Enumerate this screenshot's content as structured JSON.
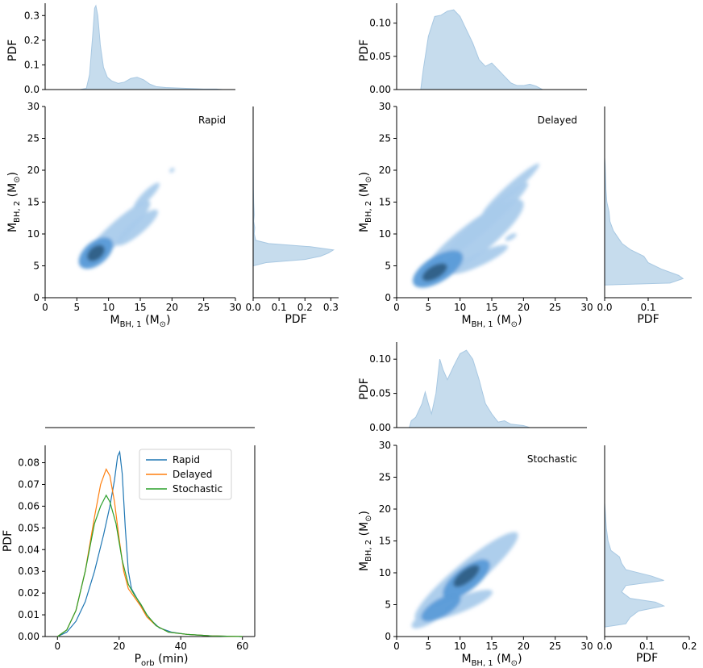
{
  "chart_data": [
    {
      "name": "rapid",
      "type": "kde-joint",
      "annotation": "Rapid",
      "xlim": [
        0,
        30
      ],
      "ylim": [
        0,
        30
      ],
      "xticks": [
        0,
        5,
        10,
        15,
        20,
        25,
        30
      ],
      "yticks": [
        0,
        5,
        10,
        15,
        20,
        25,
        30
      ],
      "xlabel": "M_BH,1 (M_⊙)",
      "ylabel": "M_BH,2 (M_⊙)",
      "marg_x_ylabel": "PDF",
      "marg_y_xlabel": "PDF",
      "marg_x_ylim": [
        0,
        0.35
      ],
      "marg_x_ticks": [
        "0.0",
        "0.1",
        "0.2",
        "0.3"
      ],
      "marg_y_xlim": [
        0,
        0.33
      ],
      "marg_y_ticks": [
        "0.0",
        "0.1",
        "0.2",
        "0.3"
      ],
      "marg_x_curve": [
        [
          5.5,
          0
        ],
        [
          6.5,
          0.005
        ],
        [
          7,
          0.06
        ],
        [
          7.5,
          0.22
        ],
        [
          7.8,
          0.33
        ],
        [
          8,
          0.34
        ],
        [
          8.3,
          0.3
        ],
        [
          8.7,
          0.18
        ],
        [
          9.2,
          0.09
        ],
        [
          9.8,
          0.05
        ],
        [
          10.5,
          0.035
        ],
        [
          11.5,
          0.025
        ],
        [
          12.5,
          0.03
        ],
        [
          13.5,
          0.045
        ],
        [
          14.5,
          0.05
        ],
        [
          15.5,
          0.04
        ],
        [
          16.5,
          0.022
        ],
        [
          17.5,
          0.012
        ],
        [
          19,
          0.008
        ],
        [
          21,
          0.006
        ],
        [
          23,
          0.004
        ],
        [
          25,
          0.002
        ],
        [
          27,
          0.002
        ],
        [
          28,
          0
        ]
      ],
      "marg_y_curve": [
        [
          5,
          0
        ],
        [
          5.5,
          0.05
        ],
        [
          6,
          0.2
        ],
        [
          6.5,
          0.26
        ],
        [
          7,
          0.29
        ],
        [
          7.5,
          0.31
        ],
        [
          8,
          0.22
        ],
        [
          8.5,
          0.06
        ],
        [
          9,
          0.01
        ],
        [
          10,
          0.004
        ],
        [
          11,
          0.006
        ],
        [
          12,
          0.002
        ],
        [
          13,
          0.004
        ],
        [
          14,
          0.003
        ],
        [
          15,
          0.002
        ],
        [
          17,
          0.001
        ],
        [
          20,
          0.0005
        ],
        [
          23,
          0
        ]
      ],
      "blobs": [
        {
          "x": 8,
          "y": 7,
          "rx": 1.6,
          "ry": 1.0,
          "angle": 40,
          "level": 4
        },
        {
          "x": 8,
          "y": 7,
          "rx": 3.2,
          "ry": 1.8,
          "angle": 40,
          "level": 2
        },
        {
          "x": 11,
          "y": 10,
          "rx": 7.5,
          "ry": 1.5,
          "angle": 43,
          "level": 1
        },
        {
          "x": 14.5,
          "y": 11,
          "rx": 4.2,
          "ry": 1.1,
          "angle": 40,
          "level": 1
        },
        {
          "x": 16,
          "y": 16,
          "rx": 2.8,
          "ry": 0.7,
          "angle": 45,
          "level": 1
        },
        {
          "x": 20,
          "y": 20,
          "rx": 0.45,
          "ry": 0.3,
          "angle": 45,
          "level": 1
        }
      ]
    },
    {
      "name": "delayed",
      "type": "kde-joint",
      "annotation": "Delayed",
      "xlim": [
        0,
        30
      ],
      "ylim": [
        0,
        30
      ],
      "xticks": [
        0,
        5,
        10,
        15,
        20,
        25,
        30
      ],
      "yticks": [
        0,
        5,
        10,
        15,
        20,
        25,
        30
      ],
      "xlabel": "M_BH,1 (M_⊙)",
      "ylabel": "M_BH,2 (M_⊙)",
      "marg_x_ylabel": "PDF",
      "marg_y_xlabel": "PDF",
      "marg_x_ylim": [
        0,
        0.13
      ],
      "marg_x_ticks": [
        "0.00",
        "0.05",
        "0.10"
      ],
      "marg_y_xlim": [
        0,
        0.2
      ],
      "marg_y_ticks": [
        "0.0",
        "0.1"
      ],
      "marg_x_curve": [
        [
          3.8,
          0
        ],
        [
          4.2,
          0.03
        ],
        [
          5,
          0.08
        ],
        [
          6,
          0.11
        ],
        [
          7,
          0.112
        ],
        [
          8,
          0.118
        ],
        [
          9,
          0.12
        ],
        [
          10,
          0.11
        ],
        [
          11,
          0.09
        ],
        [
          12,
          0.07
        ],
        [
          13,
          0.045
        ],
        [
          14,
          0.035
        ],
        [
          15,
          0.04
        ],
        [
          16,
          0.03
        ],
        [
          17,
          0.02
        ],
        [
          18,
          0.01
        ],
        [
          19,
          0.006
        ],
        [
          20,
          0.006
        ],
        [
          21,
          0.008
        ],
        [
          22,
          0.005
        ],
        [
          23,
          0
        ]
      ],
      "marg_y_curve": [
        [
          2,
          0
        ],
        [
          2.3,
          0.15
        ],
        [
          3,
          0.18
        ],
        [
          3.5,
          0.17
        ],
        [
          4.5,
          0.13
        ],
        [
          5.5,
          0.1
        ],
        [
          6.5,
          0.09
        ],
        [
          7.5,
          0.06
        ],
        [
          8.5,
          0.04
        ],
        [
          9.5,
          0.03
        ],
        [
          10.5,
          0.02
        ],
        [
          12,
          0.012
        ],
        [
          13.5,
          0.01
        ],
        [
          15,
          0.005
        ],
        [
          17,
          0.003
        ],
        [
          19,
          0.002
        ],
        [
          21,
          0.001
        ],
        [
          22,
          0
        ]
      ],
      "blobs": [
        {
          "x": 6,
          "y": 4,
          "rx": 2.2,
          "ry": 1.0,
          "angle": 30,
          "level": 4
        },
        {
          "x": 6.5,
          "y": 4.5,
          "rx": 4.5,
          "ry": 2.0,
          "angle": 32,
          "level": 2
        },
        {
          "x": 12,
          "y": 9,
          "rx": 10,
          "ry": 2.5,
          "angle": 38,
          "level": 1
        },
        {
          "x": 14,
          "y": 12,
          "rx": 9,
          "ry": 1.2,
          "angle": 42,
          "level": 1
        },
        {
          "x": 18,
          "y": 17,
          "rx": 6,
          "ry": 0.8,
          "angle": 42,
          "level": 1
        },
        {
          "x": 13,
          "y": 6,
          "rx": 5,
          "ry": 1.0,
          "angle": 25,
          "level": 1
        },
        {
          "x": 18,
          "y": 9.5,
          "rx": 1.0,
          "ry": 0.4,
          "angle": 30,
          "level": 1
        }
      ]
    },
    {
      "name": "stochastic",
      "type": "kde-joint",
      "annotation": "Stochastic",
      "xlim": [
        0,
        30
      ],
      "ylim": [
        0,
        30
      ],
      "xticks": [
        0,
        5,
        10,
        15,
        20,
        25,
        30
      ],
      "yticks": [
        0,
        5,
        10,
        15,
        20,
        25,
        30
      ],
      "xlabel": "M_BH,1 (M_⊙)",
      "ylabel": "M_BH,2 (M_⊙)",
      "marg_x_ylabel": "PDF",
      "marg_y_xlabel": "PDF",
      "marg_x_ylim": [
        0,
        0.125
      ],
      "marg_x_ticks": [
        "0.00",
        "0.05",
        "0.10"
      ],
      "marg_y_xlim": [
        0,
        0.2
      ],
      "marg_y_ticks": [
        "0.0",
        "0.1",
        "0.2"
      ],
      "marg_x_curve": [
        [
          2,
          0
        ],
        [
          2.3,
          0.01
        ],
        [
          3,
          0.015
        ],
        [
          4,
          0.035
        ],
        [
          4.5,
          0.052
        ],
        [
          5,
          0.035
        ],
        [
          5.5,
          0.02
        ],
        [
          6.2,
          0.05
        ],
        [
          6.8,
          0.1
        ],
        [
          7.3,
          0.085
        ],
        [
          8,
          0.07
        ],
        [
          9,
          0.09
        ],
        [
          10,
          0.108
        ],
        [
          11,
          0.113
        ],
        [
          12,
          0.1
        ],
        [
          13,
          0.07
        ],
        [
          14,
          0.035
        ],
        [
          15,
          0.02
        ],
        [
          16,
          0.008
        ],
        [
          17,
          0.01
        ],
        [
          18,
          0.005
        ],
        [
          19,
          0.004
        ],
        [
          20,
          0.003
        ],
        [
          21,
          0
        ]
      ],
      "marg_y_curve": [
        [
          1.5,
          0
        ],
        [
          2,
          0.05
        ],
        [
          3,
          0.06
        ],
        [
          4,
          0.08
        ],
        [
          4.8,
          0.14
        ],
        [
          5.4,
          0.12
        ],
        [
          6,
          0.06
        ],
        [
          7,
          0.04
        ],
        [
          8,
          0.05
        ],
        [
          8.8,
          0.14
        ],
        [
          9.5,
          0.11
        ],
        [
          10.5,
          0.05
        ],
        [
          11.5,
          0.04
        ],
        [
          12.5,
          0.035
        ],
        [
          13.5,
          0.015
        ],
        [
          15,
          0.008
        ],
        [
          17,
          0.004
        ],
        [
          19,
          0.002
        ],
        [
          21,
          0
        ]
      ],
      "blobs": [
        {
          "x": 11,
          "y": 9.5,
          "rx": 2.5,
          "ry": 1.0,
          "angle": 38,
          "level": 4
        },
        {
          "x": 11,
          "y": 9,
          "rx": 4.5,
          "ry": 1.8,
          "angle": 38,
          "level": 2
        },
        {
          "x": 11,
          "y": 9.5,
          "rx": 10.5,
          "ry": 2.0,
          "angle": 40,
          "level": 1
        },
        {
          "x": 7,
          "y": 4.5,
          "rx": 3.5,
          "ry": 1.4,
          "angle": 30,
          "level": 2
        },
        {
          "x": 10,
          "y": 5,
          "rx": 5.5,
          "ry": 1.2,
          "angle": 22,
          "level": 1
        },
        {
          "x": 5,
          "y": 3,
          "rx": 3.0,
          "ry": 1.0,
          "angle": 30,
          "level": 1
        }
      ]
    },
    {
      "name": "porb",
      "type": "line",
      "xlabel": "P_orb (min)",
      "ylabel": "PDF",
      "xlim": [
        -4,
        64
      ],
      "ylim": [
        0,
        0.088
      ],
      "xticks": [
        0,
        20,
        40,
        60
      ],
      "yticks": [
        "0.00",
        "0.01",
        "0.02",
        "0.03",
        "0.04",
        "0.05",
        "0.06",
        "0.07",
        "0.08"
      ],
      "series": [
        {
          "name": "Rapid",
          "color": "#1f77b4",
          "points": [
            [
              0,
              0
            ],
            [
              3,
              0.002
            ],
            [
              6,
              0.007
            ],
            [
              9,
              0.016
            ],
            [
              12,
              0.03
            ],
            [
              15,
              0.047
            ],
            [
              17,
              0.06
            ],
            [
              18.5,
              0.072
            ],
            [
              19.5,
              0.083
            ],
            [
              20.2,
              0.085
            ],
            [
              21,
              0.075
            ],
            [
              22,
              0.05
            ],
            [
              23,
              0.03
            ],
            [
              24,
              0.022
            ],
            [
              26,
              0.017
            ],
            [
              28,
              0.012
            ],
            [
              30,
              0.008
            ],
            [
              33,
              0.004
            ],
            [
              37,
              0.002
            ],
            [
              42,
              0.001
            ],
            [
              50,
              0.0003
            ],
            [
              60,
              0
            ]
          ]
        },
        {
          "name": "Delayed",
          "color": "#ff7f0e",
          "points": [
            [
              0,
              0
            ],
            [
              3,
              0.003
            ],
            [
              6,
              0.012
            ],
            [
              9,
              0.03
            ],
            [
              12,
              0.055
            ],
            [
              14,
              0.07
            ],
            [
              15.8,
              0.077
            ],
            [
              17,
              0.074
            ],
            [
              18.5,
              0.062
            ],
            [
              20,
              0.045
            ],
            [
              21.5,
              0.03
            ],
            [
              23,
              0.022
            ],
            [
              25,
              0.018
            ],
            [
              27,
              0.014
            ],
            [
              29,
              0.009
            ],
            [
              32,
              0.005
            ],
            [
              36,
              0.002
            ],
            [
              42,
              0.001
            ],
            [
              50,
              0.0003
            ],
            [
              60,
              0
            ]
          ]
        },
        {
          "name": "Stochastic",
          "color": "#2ca02c",
          "points": [
            [
              0,
              0
            ],
            [
              3,
              0.003
            ],
            [
              6,
              0.012
            ],
            [
              9,
              0.03
            ],
            [
              12,
              0.052
            ],
            [
              14,
              0.06
            ],
            [
              15.8,
              0.065
            ],
            [
              17,
              0.062
            ],
            [
              19,
              0.052
            ],
            [
              21,
              0.035
            ],
            [
              23,
              0.024
            ],
            [
              25,
              0.019
            ],
            [
              27,
              0.015
            ],
            [
              29,
              0.01
            ],
            [
              32,
              0.005
            ],
            [
              36,
              0.002
            ],
            [
              42,
              0.001
            ],
            [
              50,
              0.0003
            ],
            [
              60,
              0
            ]
          ]
        }
      ]
    }
  ]
}
